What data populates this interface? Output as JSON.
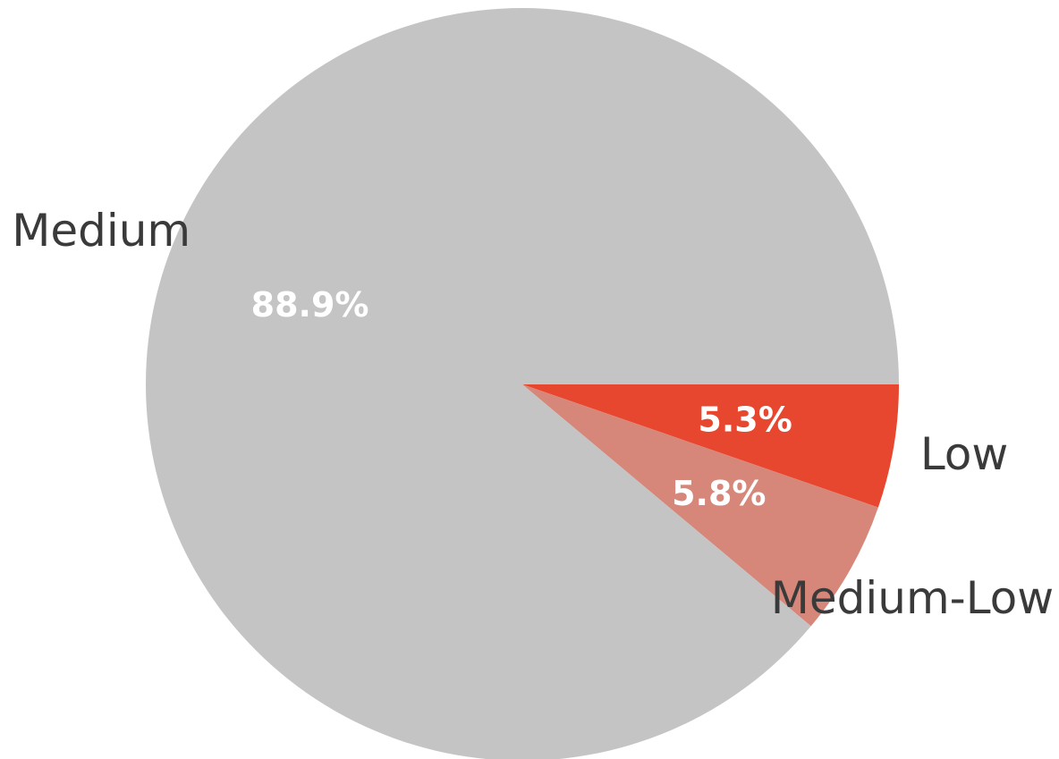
{
  "chart_data": {
    "type": "pie",
    "categories": [
      "Low",
      "Medium-Low",
      "Medium"
    ],
    "values": [
      5.3,
      5.8,
      88.9
    ],
    "value_labels": [
      "5.3%",
      "5.8%",
      "88.9%"
    ],
    "colors": [
      "#e8472f",
      "#d6877a",
      "#c4c4c4"
    ]
  }
}
